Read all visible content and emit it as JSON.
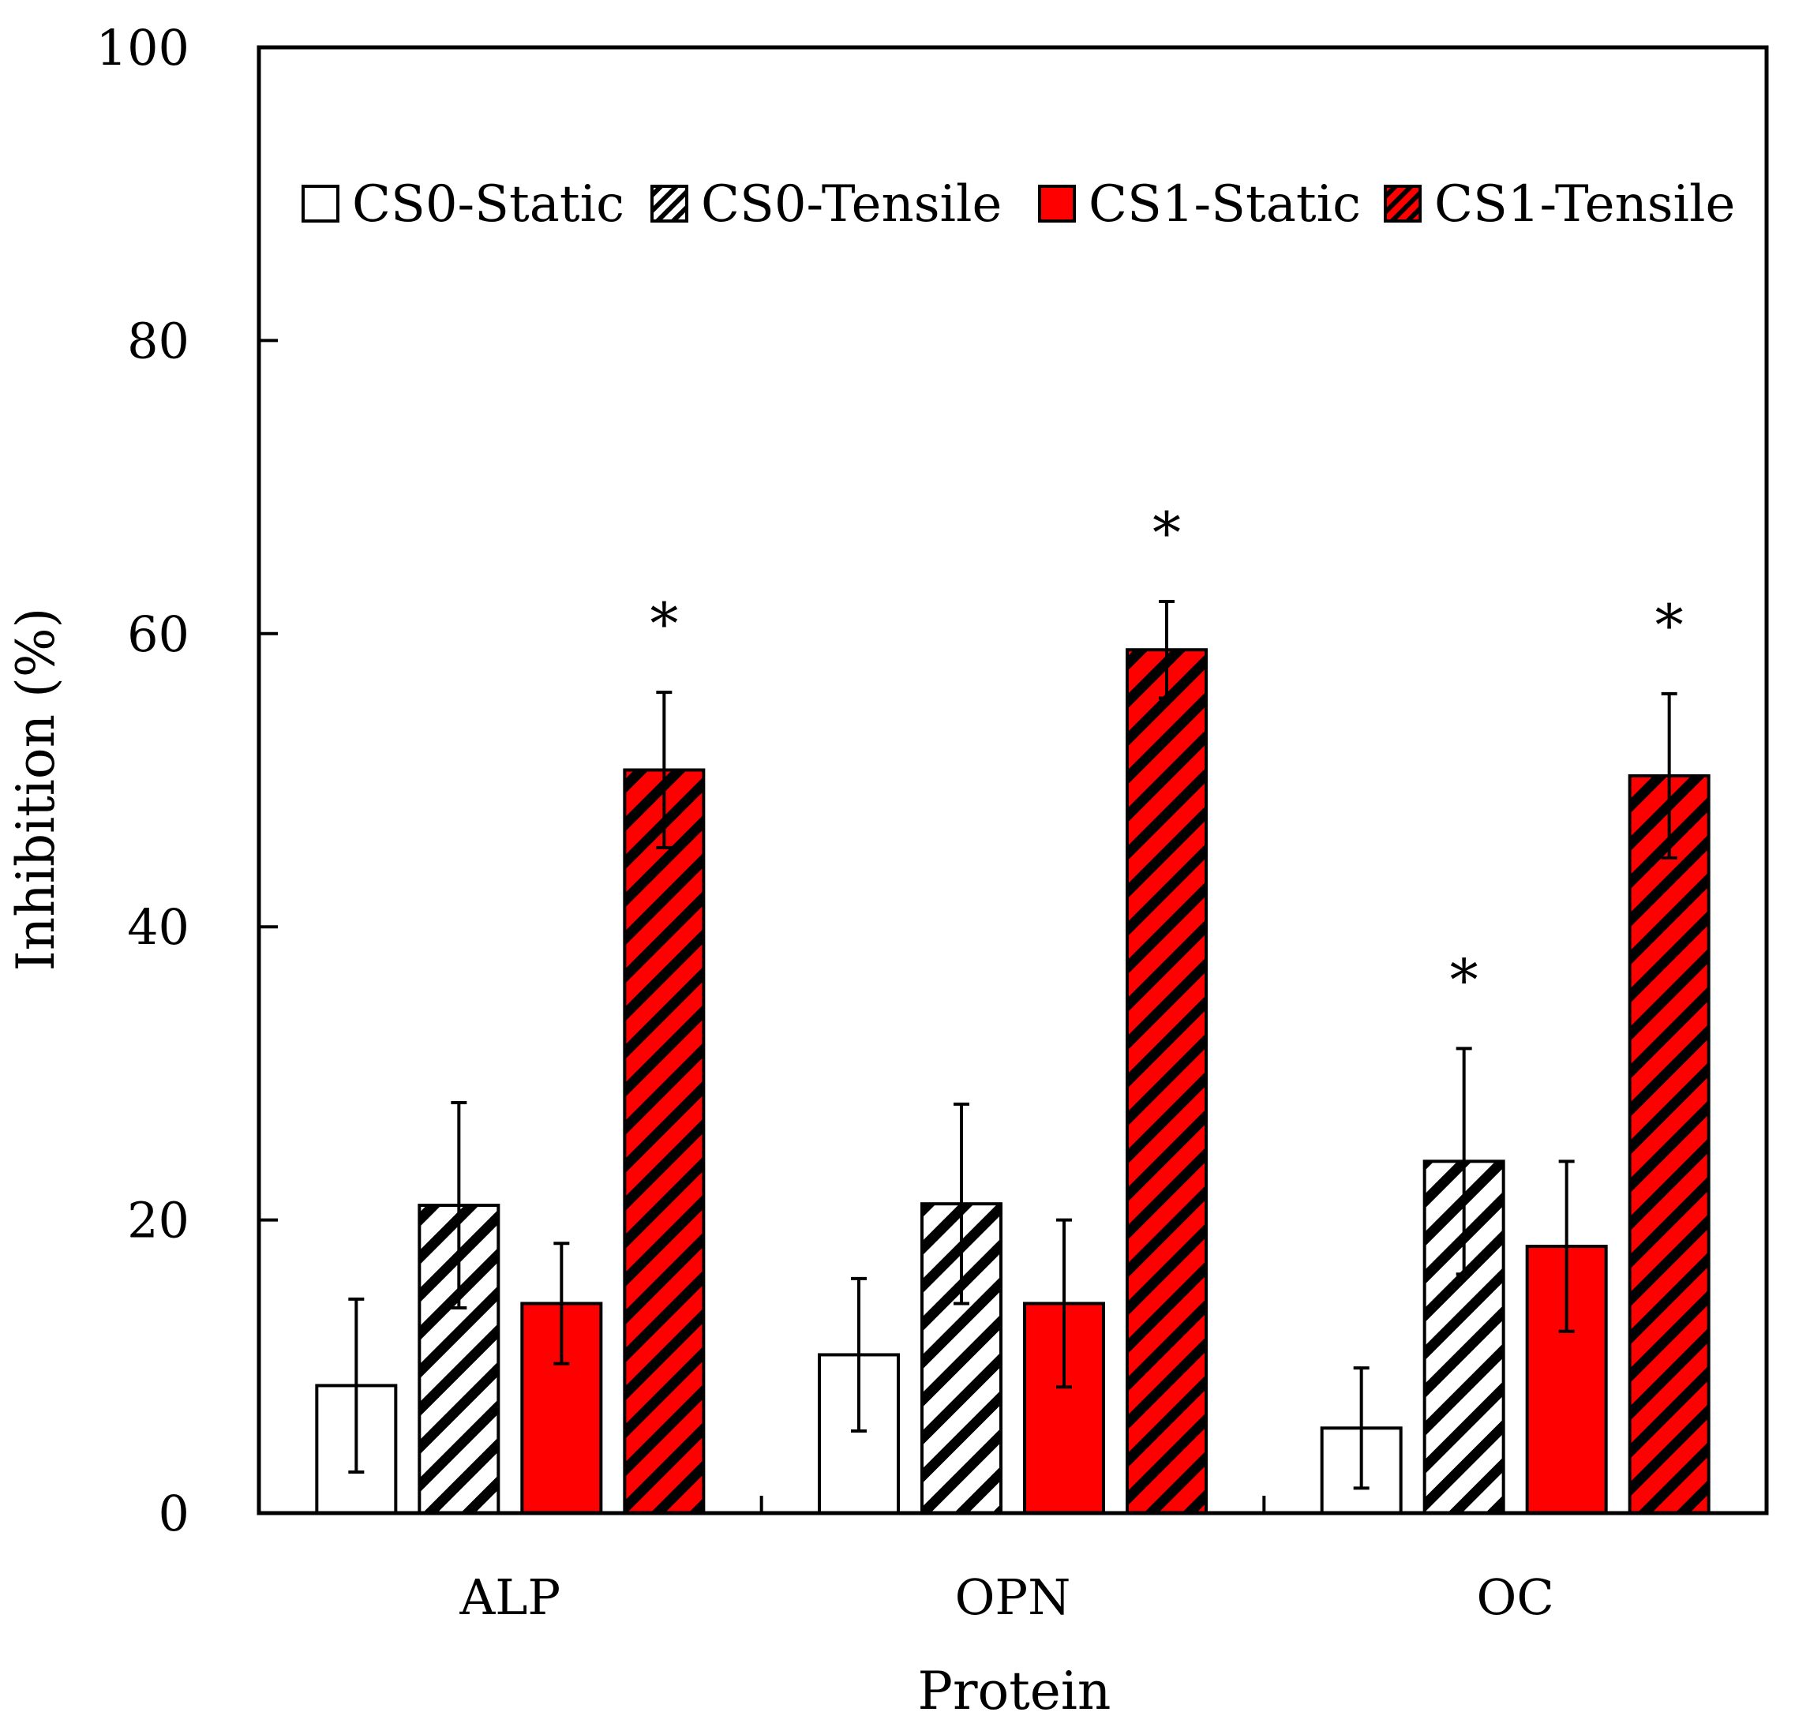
{
  "chart_data": {
    "type": "bar",
    "title": "",
    "xlabel": "Protein",
    "ylabel": "Inhibition (%)",
    "ylim": [
      0,
      100
    ],
    "yticks": [
      "0",
      "20",
      "40",
      "60",
      "80",
      "100"
    ],
    "categories": [
      "ALP",
      "OPN",
      "OC"
    ],
    "series": [
      {
        "name": "CS0-Static",
        "values": [
          8.7,
          10.8,
          5.8
        ],
        "errors": [
          5.9,
          5.2,
          4.1
        ],
        "significant": [
          false,
          false,
          false
        ],
        "color": "#ffffff",
        "hatch": "none"
      },
      {
        "name": "CS0-Tensile",
        "values": [
          21.0,
          21.1,
          24.0
        ],
        "errors": [
          7.0,
          6.8,
          7.7
        ],
        "significant": [
          false,
          false,
          true
        ],
        "color": "#ffffff",
        "hatch": "diagonal"
      },
      {
        "name": "CS1-Static",
        "values": [
          14.3,
          14.3,
          18.2
        ],
        "errors": [
          4.1,
          5.7,
          5.8
        ],
        "significant": [
          false,
          false,
          false
        ],
        "color": "#ff0000",
        "hatch": "none"
      },
      {
        "name": "CS1-Tensile",
        "values": [
          50.7,
          58.9,
          50.3
        ],
        "errors": [
          5.3,
          3.3,
          5.6
        ],
        "significant": [
          true,
          true,
          true
        ],
        "color": "#ff0000",
        "hatch": "diagonal"
      }
    ],
    "significance_marker": "*",
    "legend_position": "top"
  }
}
